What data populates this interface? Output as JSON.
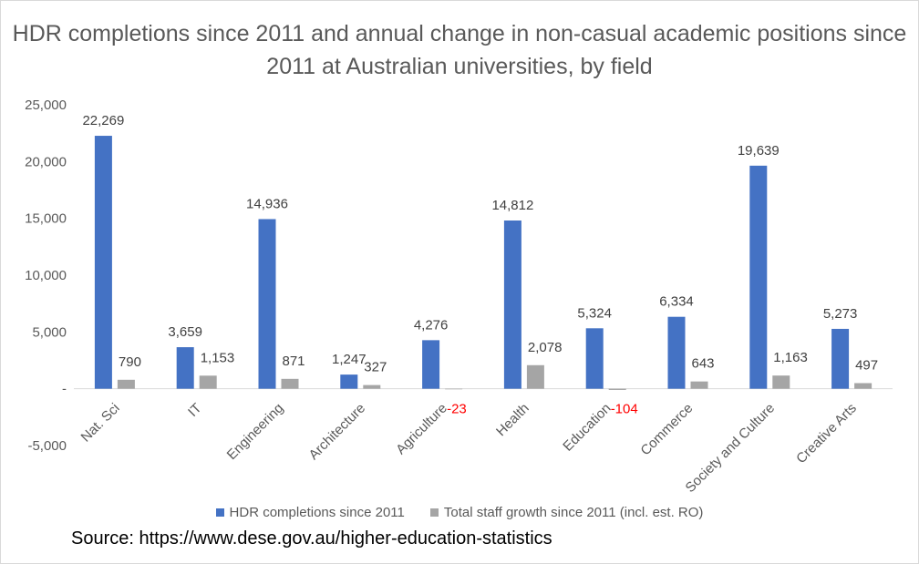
{
  "chart_data": {
    "type": "bar",
    "title": "HDR completions since 2011 and annual change in non-casual academic positions since 2011 at Australian universities, by field",
    "categories": [
      "Nat. Sci",
      "IT",
      "Engineering",
      "Architecture",
      "Agriculture",
      "Health",
      "Education",
      "Commerce",
      "Society and Culture",
      "Creative Arts"
    ],
    "series": [
      {
        "name": "HDR completions since 2011",
        "color": "#4472c4",
        "values": [
          22269,
          3659,
          14936,
          1247,
          4276,
          14812,
          5324,
          6334,
          19639,
          5273
        ],
        "labels": [
          "22,269",
          "3,659",
          "14,936",
          "1,247",
          "4,276",
          "14,812",
          "5,324",
          "6,334",
          "19,639",
          "5,273"
        ]
      },
      {
        "name": "Total staff growth since 2011 (incl. est. RO)",
        "color": "#a5a5a5",
        "values": [
          790,
          1153,
          871,
          327,
          -23,
          2078,
          -104,
          643,
          1163,
          497
        ],
        "labels": [
          "790",
          "1,153",
          "871",
          "327",
          "-23",
          "2,078",
          "-104",
          "643",
          "1,163",
          "497"
        ]
      }
    ],
    "negative_label_color": "#ff0000",
    "ylim": [
      -5000,
      25000
    ],
    "yticks": [
      -5000,
      0,
      5000,
      10000,
      15000,
      20000,
      25000
    ],
    "ytick_labels": [
      "-5,000",
      "-",
      "5,000",
      "10,000",
      "15,000",
      "20,000",
      "25,000"
    ],
    "xlabel": "",
    "ylabel": "",
    "grid": false,
    "legend_position": "bottom"
  },
  "source_text": "Source: https://www.dese.gov.au/higher-education-statistics"
}
